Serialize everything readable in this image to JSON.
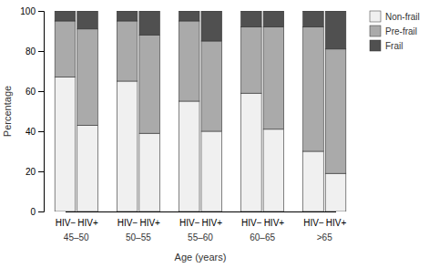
{
  "chart_data": {
    "type": "bar",
    "stacked": true,
    "categories": [
      "HIV−",
      "HIV+",
      "HIV−",
      "HIV+",
      "HIV−",
      "HIV+",
      "HIV−",
      "HIV+",
      "HIV−",
      "HIV+"
    ],
    "groups": [
      "45–50",
      "50–55",
      "55–60",
      "60–65",
      ">65"
    ],
    "series": [
      {
        "name": "Non-frail",
        "color": "#f0f0f0",
        "values": [
          67,
          43,
          65,
          39,
          55,
          40,
          59,
          41,
          30,
          19
        ]
      },
      {
        "name": "Pre-frail",
        "color": "#aaaaaa",
        "values": [
          28,
          48,
          30,
          49,
          40,
          45,
          33,
          51,
          62,
          62
        ]
      },
      {
        "name": "Frail",
        "color": "#505050",
        "values": [
          5,
          9,
          5,
          12,
          5,
          15,
          8,
          8,
          8,
          19
        ]
      }
    ],
    "xlabel": "Age (years)",
    "ylabel": "Percentage",
    "ylim": [
      0,
      100
    ],
    "yticks": [
      0,
      20,
      40,
      60,
      80,
      100
    ],
    "grid": false,
    "legend": "upper right"
  }
}
